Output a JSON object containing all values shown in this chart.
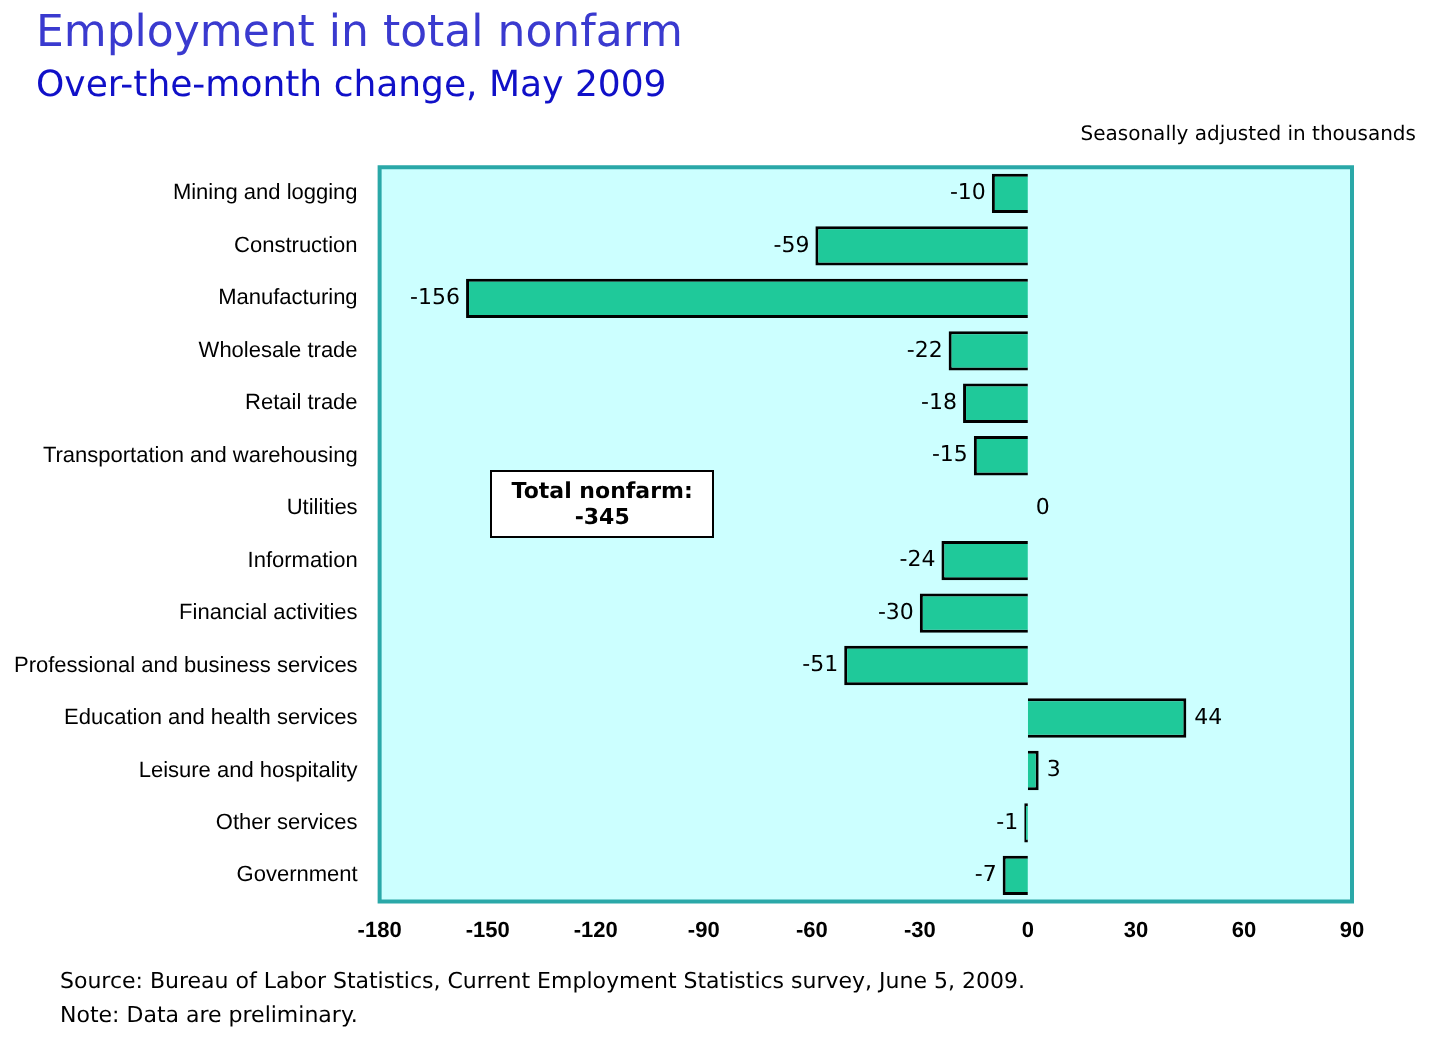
{
  "chart_data": {
    "type": "bar",
    "orientation": "horizontal",
    "title": "Employment in total nonfarm",
    "subtitle": "Over-the-month change, May 2009",
    "categories": [
      "Mining and logging",
      "Construction",
      "Manufacturing",
      "Wholesale trade",
      "Retail trade",
      "Transportation and warehousing",
      "Utilities",
      "Information",
      "Financial activities",
      "Professional and business services",
      "Education and health services",
      "Leisure and hospitality",
      "Other services",
      "Government"
    ],
    "values": [
      -10,
      -59,
      -156,
      -22,
      -18,
      -15,
      0,
      -24,
      -30,
      -51,
      44,
      3,
      -1,
      -7
    ],
    "color": "#1fc99a",
    "xlim": [
      -180,
      90
    ],
    "xticks": [
      -180,
      -150,
      -120,
      -90,
      -60,
      -30,
      0,
      30,
      60,
      90
    ],
    "grid": false,
    "data_labels": true,
    "annotations": [
      "Seasonally adjusted in thousands",
      "Total nonfarm:\n-345",
      "Source:  Bureau of Labor Statistics, Current Employment Statistics survey, June 5, 2009.",
      "Note:  Data are preliminary."
    ]
  }
}
